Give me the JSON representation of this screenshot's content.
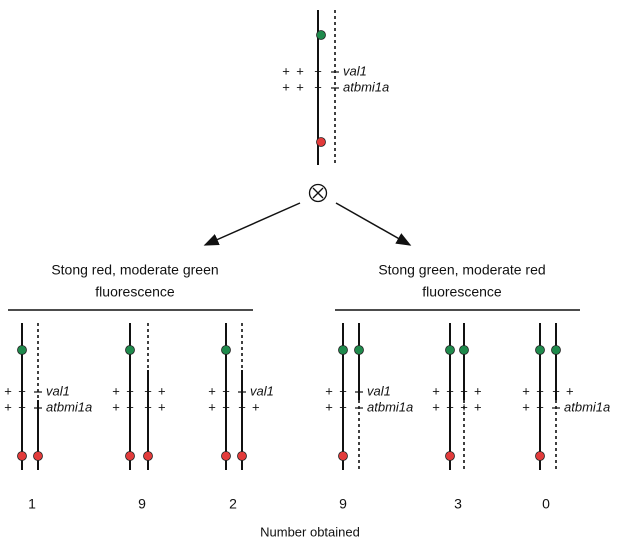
{
  "parent": {
    "labels": [
      "val1",
      "atbmi1a"
    ]
  },
  "allele_symbol": "+",
  "groups": [
    {
      "title_lines": [
        "Stong red, moderate green",
        "fluorescence"
      ]
    },
    {
      "title_lines": [
        "Stong green, moderate red",
        "fluorescence"
      ]
    }
  ],
  "offspring": [
    {
      "count": "1",
      "labels": [
        "val1",
        "atbmi1a"
      ]
    },
    {
      "count": "9",
      "labels": [
        "+",
        "+"
      ]
    },
    {
      "count": "2",
      "labels": [
        "val1",
        "+"
      ]
    },
    {
      "count": "9",
      "labels": [
        "val1",
        "atbmi1a"
      ]
    },
    {
      "count": "3",
      "labels": [
        "+",
        "+"
      ]
    },
    {
      "count": "0",
      "labels": [
        "+",
        "atbmi1a"
      ]
    }
  ],
  "x_label": "Number obtained"
}
